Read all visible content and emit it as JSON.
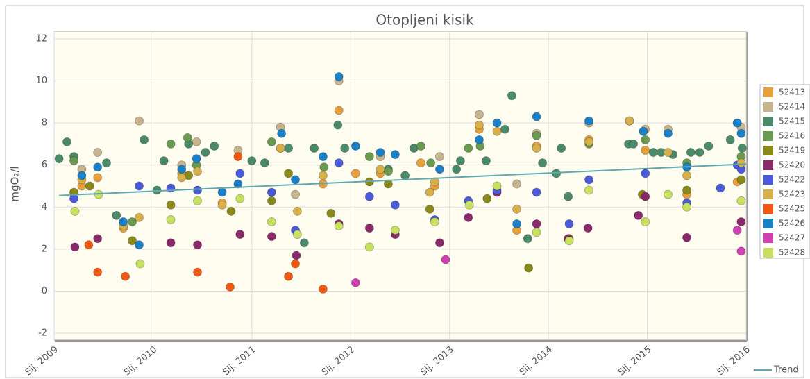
{
  "chart_data": {
    "type": "scatter",
    "title": "Otopljeni kisik",
    "y_label": "mgO₂/l",
    "xlim": [
      2009,
      2016
    ],
    "xticks": [
      {
        "value": 2009,
        "label": "Sij. 2009"
      },
      {
        "value": 2010,
        "label": "Sij. 2010"
      },
      {
        "value": 2011,
        "label": "Sij. 2011"
      },
      {
        "value": 2012,
        "label": "Sij. 2012"
      },
      {
        "value": 2013,
        "label": "Sij. 2013"
      },
      {
        "value": 2014,
        "label": "Sij. 2014"
      },
      {
        "value": 2015,
        "label": "Sij. 2015"
      },
      {
        "value": 2016,
        "label": "Sij. 2016"
      }
    ],
    "ylim": [
      -2,
      12
    ],
    "yticks": [
      -2,
      0,
      2,
      4,
      6,
      8,
      10,
      12
    ],
    "grid": true,
    "series": [
      {
        "name": "52413",
        "color": "#e8a03a",
        "x": [
          2009.28,
          2009.44,
          2009.7,
          2010.29,
          2010.7,
          2011.29,
          2011.72,
          2011.88,
          2012.05,
          2012.3,
          2012.71,
          2012.85,
          2013.3,
          2013.68,
          2013.88,
          2014.41,
          2014.98,
          2015.4,
          2015.91
        ],
        "values": [
          5.0,
          5.4,
          3.0,
          5.6,
          4.2,
          6.8,
          5.1,
          8.6,
          5.6,
          5.6,
          6.1,
          5.0,
          7.7,
          2.9,
          6.9,
          7.2,
          6.7,
          4.6,
          5.2
        ]
      },
      {
        "name": "52414",
        "color": "#c8b48c",
        "x": [
          2009.28,
          2009.44,
          2009.86,
          2010.29,
          2010.44,
          2010.86,
          2011.29,
          2011.44,
          2011.88,
          2012.3,
          2012.9,
          2013.3,
          2013.68,
          2013.88,
          2014.41,
          2014.82,
          2014.98,
          2015.21,
          2015.95
        ],
        "values": [
          5.8,
          6.6,
          8.1,
          6.0,
          7.1,
          6.7,
          7.8,
          4.6,
          10.0,
          6.4,
          6.4,
          8.4,
          5.1,
          7.5,
          8.0,
          8.1,
          7.7,
          7.7,
          7.8
        ]
      },
      {
        "name": "52415",
        "color": "#4a8a6a",
        "x": [
          2009.05,
          2009.13,
          2009.2,
          2009.53,
          2009.63,
          2009.91,
          2010.04,
          2010.11,
          2010.36,
          2010.53,
          2010.62,
          2011.0,
          2011.13,
          2011.37,
          2011.53,
          2011.63,
          2011.87,
          2011.94,
          2012.38,
          2012.55,
          2012.64,
          2013.07,
          2013.11,
          2013.37,
          2013.56,
          2013.63,
          2013.79,
          2013.94,
          2014.08,
          2014.13,
          2014.2,
          2014.81,
          2014.86,
          2015.06,
          2015.14,
          2015.26,
          2015.44,
          2015.53,
          2015.62,
          2015.84,
          2015.96
        ],
        "values": [
          6.3,
          7.1,
          6.4,
          6.1,
          3.6,
          7.2,
          4.8,
          6.2,
          7.0,
          6.6,
          6.9,
          6.2,
          6.1,
          6.8,
          2.3,
          6.8,
          7.9,
          6.8,
          5.8,
          5.5,
          6.8,
          5.8,
          6.2,
          6.2,
          7.7,
          9.3,
          2.5,
          6.1,
          5.6,
          6.8,
          4.5,
          7.0,
          7.0,
          6.6,
          6.6,
          6.5,
          6.6,
          6.6,
          6.9,
          7.2,
          6.8
        ]
      },
      {
        "name": "52416",
        "color": "#6a9a50",
        "x": [
          2009.2,
          2009.79,
          2010.18,
          2010.35,
          2010.44,
          2011.2,
          2011.73,
          2012.19,
          2012.38,
          2012.71,
          2012.81,
          2013.19,
          2013.31,
          2013.88,
          2014.41,
          2014.98,
          2015.4,
          2015.95
        ],
        "values": [
          6.2,
          3.3,
          7.0,
          7.3,
          6.0,
          7.1,
          5.9,
          6.4,
          5.7,
          6.9,
          6.1,
          6.8,
          6.9,
          7.4,
          7.0,
          7.2,
          6.1,
          6.4
        ]
      },
      {
        "name": "52419",
        "color": "#8a8a1a",
        "x": [
          2009.2,
          2009.36,
          2009.79,
          2010.18,
          2010.36,
          2010.79,
          2011.2,
          2011.37,
          2011.8,
          2012.19,
          2012.38,
          2012.8,
          2013.38,
          2013.8,
          2014.21,
          2014.95,
          2015.4,
          2015.95
        ],
        "values": [
          4.7,
          5.0,
          2.4,
          4.1,
          5.5,
          3.8,
          4.3,
          5.6,
          3.7,
          5.2,
          5.1,
          3.9,
          4.4,
          1.1,
          2.5,
          4.6,
          4.8,
          5.3
        ]
      },
      {
        "name": "52420",
        "color": "#8a2a6a",
        "x": [
          2009.21,
          2009.44,
          2010.18,
          2010.45,
          2010.88,
          2011.2,
          2011.45,
          2011.88,
          2012.19,
          2012.45,
          2012.9,
          2013.19,
          2013.48,
          2013.88,
          2014.2,
          2014.4,
          2014.91,
          2014.98,
          2015.4,
          2015.95
        ],
        "values": [
          2.1,
          2.5,
          2.3,
          2.2,
          2.7,
          2.6,
          1.7,
          3.2,
          3.0,
          2.7,
          2.3,
          3.5,
          4.7,
          3.2,
          2.5,
          3.0,
          3.6,
          4.5,
          2.55,
          3.3
        ]
      },
      {
        "name": "52422",
        "color": "#4a5ad8",
        "x": [
          2009.2,
          2009.86,
          2010.18,
          2010.45,
          2010.88,
          2011.2,
          2011.44,
          2011.88,
          2012.19,
          2012.45,
          2012.85,
          2013.19,
          2013.48,
          2013.88,
          2014.21,
          2014.41,
          2014.98,
          2015.4,
          2015.74,
          2015.91,
          2015.95
        ],
        "values": [
          4.4,
          5.0,
          4.9,
          4.8,
          5.6,
          4.7,
          2.9,
          6.1,
          4.5,
          4.1,
          3.4,
          4.3,
          4.8,
          4.7,
          3.2,
          5.3,
          5.6,
          4.2,
          4.9,
          6.0,
          5.8
        ]
      },
      {
        "name": "52423",
        "color": "#d8b04a",
        "x": [
          2009.28,
          2009.7,
          2009.86,
          2010.29,
          2010.45,
          2010.7,
          2011.29,
          2011.46,
          2011.72,
          2012.3,
          2012.8,
          2012.85,
          2013.3,
          2013.48,
          2013.68,
          2013.88,
          2014.41,
          2014.82,
          2015.21,
          2015.4,
          2015.95
        ],
        "values": [
          5.3,
          3.1,
          3.5,
          5.4,
          5.7,
          4.1,
          6.8,
          3.8,
          5.5,
          5.8,
          4.7,
          5.2,
          7.9,
          7.6,
          3.9,
          6.8,
          7.1,
          8.1,
          6.6,
          5.5,
          6.1
        ]
      },
      {
        "name": "52425",
        "color": "#f05a10",
        "x": [
          2009.35,
          2009.44,
          2009.72,
          2010.45,
          2010.78,
          2010.86,
          2011.37,
          2011.44,
          2011.72
        ],
        "values": [
          2.2,
          0.9,
          0.7,
          0.9,
          0.2,
          6.4,
          0.7,
          1.3,
          0.1
        ]
      },
      {
        "name": "52426",
        "color": "#1a80c8",
        "x": [
          2009.28,
          2009.44,
          2009.7,
          2009.86,
          2010.29,
          2010.44,
          2010.7,
          2010.86,
          2011.3,
          2011.44,
          2011.72,
          2011.88,
          2012.05,
          2012.3,
          2012.45,
          2012.9,
          2013.3,
          2013.48,
          2013.68,
          2013.88,
          2014.41,
          2014.96,
          2015.21,
          2015.4,
          2015.91,
          2015.95
        ],
        "values": [
          5.5,
          5.9,
          3.3,
          2.2,
          5.8,
          6.3,
          4.7,
          5.1,
          7.5,
          5.3,
          6.4,
          10.2,
          6.9,
          6.6,
          6.5,
          5.8,
          7.2,
          8.0,
          3.2,
          8.3,
          8.1,
          7.6,
          7.5,
          5.9,
          8.0,
          7.5
        ]
      },
      {
        "name": "52427",
        "color": "#d040b0",
        "x": [
          2012.05,
          2012.96,
          2015.91,
          2015.95
        ],
        "values": [
          0.4,
          1.5,
          2.9,
          1.9
        ]
      },
      {
        "name": "52428",
        "color": "#c8e060",
        "x": [
          2009.21,
          2009.45,
          2009.87,
          2010.18,
          2010.45,
          2010.88,
          2011.2,
          2011.46,
          2011.88,
          2012.19,
          2012.45,
          2012.85,
          2013.2,
          2013.48,
          2013.88,
          2014.21,
          2014.41,
          2014.98,
          2015.21,
          2015.4,
          2015.95
        ],
        "values": [
          3.8,
          4.6,
          1.3,
          3.4,
          4.3,
          4.4,
          3.3,
          2.7,
          3.1,
          2.1,
          2.9,
          3.3,
          4.1,
          5.0,
          2.8,
          2.4,
          4.8,
          3.3,
          4.6,
          4.0,
          4.3
        ]
      },
      {
        "name": "Trend",
        "type": "line",
        "color": "#5fa8b0",
        "x": [
          2009.05,
          2016
        ],
        "values": [
          4.55,
          6.05
        ]
      }
    ]
  }
}
